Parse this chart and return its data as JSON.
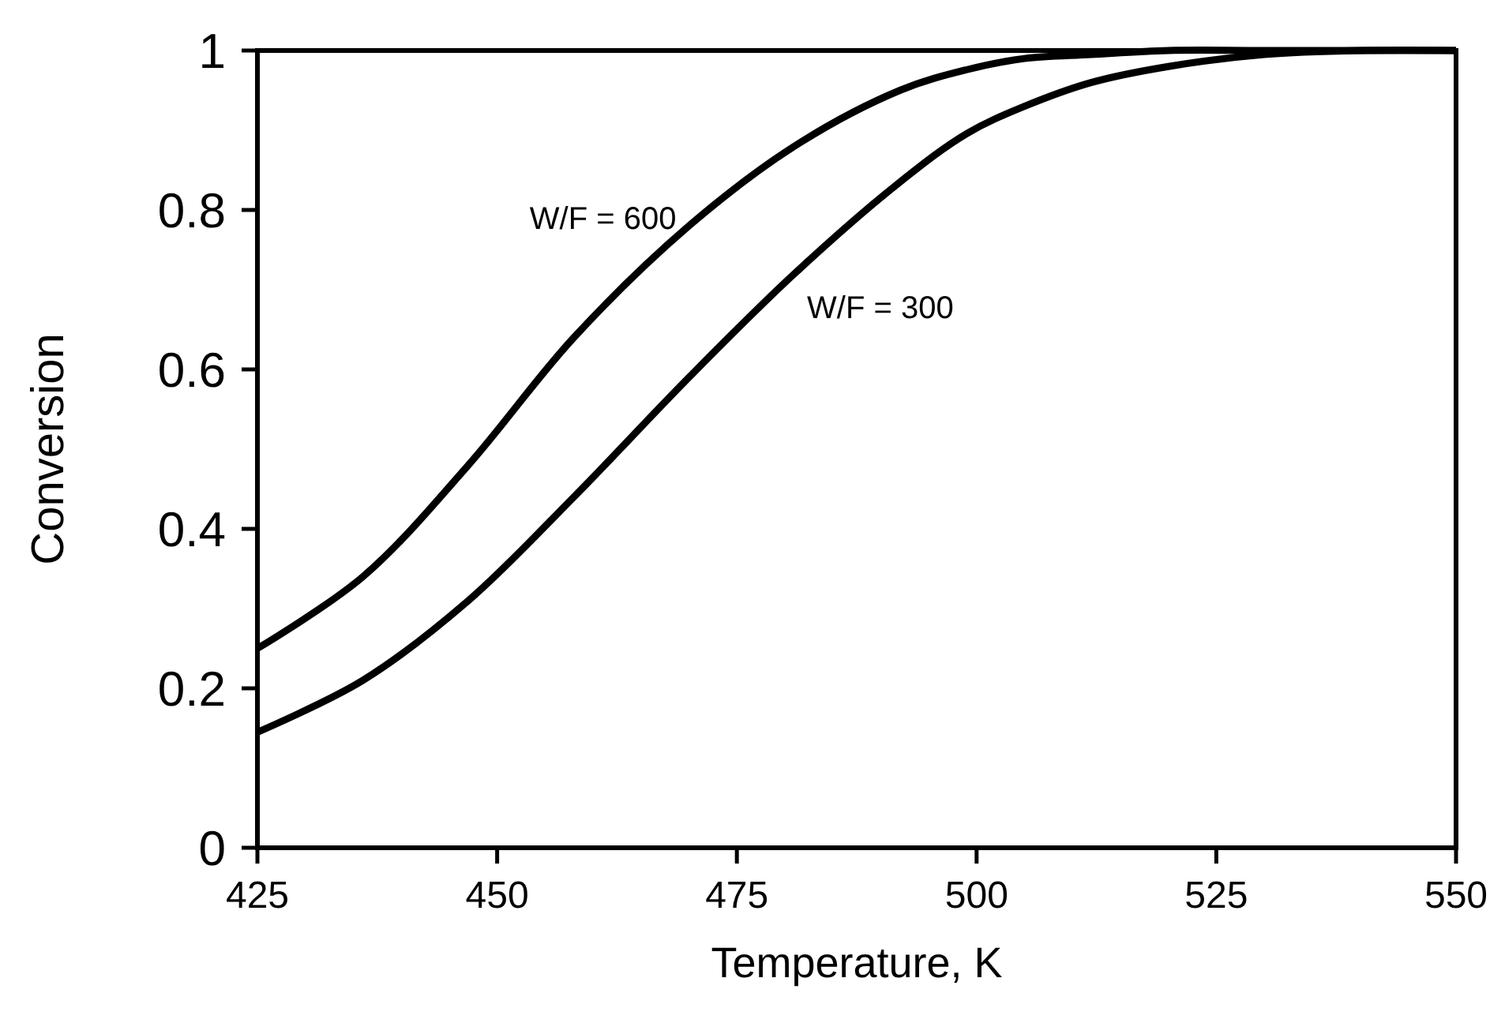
{
  "chart_data": {
    "type": "line",
    "xlabel": "Temperature, K",
    "ylabel": "Conversion",
    "xlim": [
      425,
      550
    ],
    "xticks": [
      425,
      450,
      475,
      500,
      525,
      550
    ],
    "ylim": [
      0,
      1
    ],
    "yticks": [
      0,
      0.2,
      0.4,
      0.6,
      0.8,
      1
    ],
    "grid": false,
    "marker": "none",
    "line_style": "solid",
    "series": [
      {
        "name": "W/F = 600",
        "color": "#000000",
        "x": [
          425,
          436,
          447,
          458,
          470,
          481,
          492,
          499,
          505,
          512,
          520,
          530,
          550
        ],
        "values": [
          0.25,
          0.34,
          0.48,
          0.64,
          0.78,
          0.88,
          0.95,
          0.976,
          0.99,
          0.995,
          1,
          1,
          1
        ]
      },
      {
        "name": "W/F = 300",
        "color": "#000000",
        "x": [
          425,
          436,
          447,
          458,
          470,
          481,
          492,
          499,
          505,
          512,
          520,
          530,
          540,
          550
        ],
        "values": [
          0.145,
          0.21,
          0.31,
          0.44,
          0.59,
          0.72,
          0.835,
          0.896,
          0.93,
          0.96,
          0.98,
          0.995,
          1,
          1
        ]
      }
    ]
  }
}
